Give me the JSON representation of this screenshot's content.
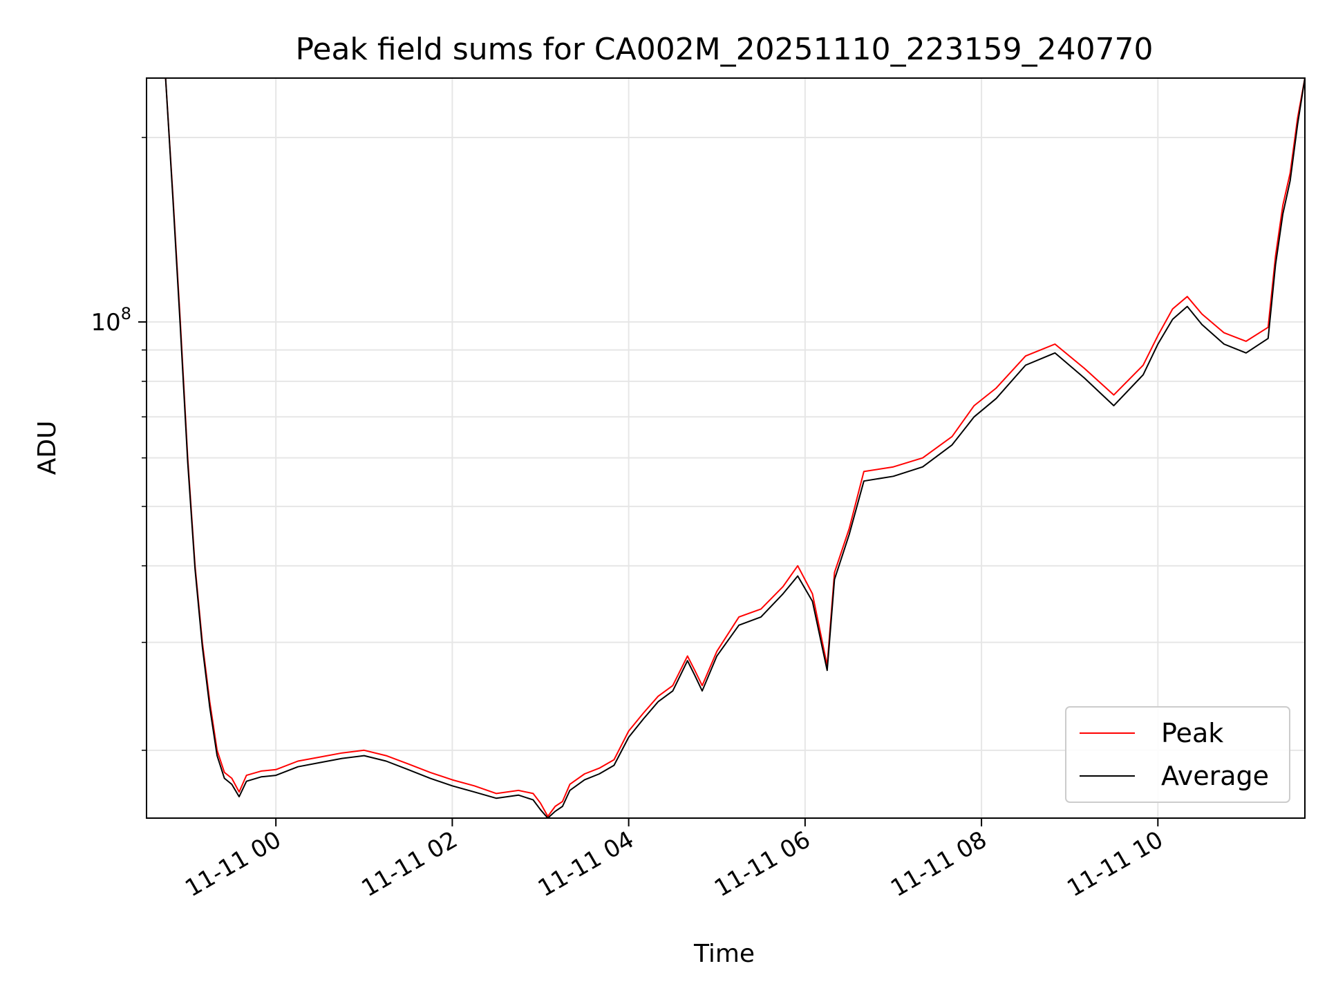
{
  "chart_data": {
    "type": "line",
    "title": "Peak field sums for CA002M_20251110_223159_240770",
    "xlabel": "Time",
    "ylabel": "ADU",
    "y_scale": "log",
    "ylim": [
      15500000,
      250000000
    ],
    "xlim": [
      "2025-11-10 22:32",
      "2025-11-11 11:40"
    ],
    "x_ticks": [
      "11-11 00",
      "11-11 02",
      "11-11 04",
      "11-11 06",
      "11-11 08",
      "11-11 10"
    ],
    "x_tick_values": [
      "2025-11-11 00:00",
      "2025-11-11 02:00",
      "2025-11-11 04:00",
      "2025-11-11 06:00",
      "2025-11-11 08:00",
      "2025-11-11 10:00"
    ],
    "y_major_tick_label": {
      "base": "10",
      "exponent": "8",
      "value": 100000000
    },
    "y_minor_ticks": [
      20000000,
      30000000,
      40000000,
      50000000,
      60000000,
      70000000,
      80000000,
      90000000,
      200000000
    ],
    "grid": true,
    "legend": {
      "position": "bottom-right",
      "entries": [
        "Peak",
        "Average"
      ]
    },
    "series": [
      {
        "name": "Peak",
        "color": "#ff0000",
        "x": [
          "2025-11-10 22:45",
          "2025-11-10 22:50",
          "2025-11-10 22:55",
          "2025-11-10 23:00",
          "2025-11-10 23:05",
          "2025-11-10 23:10",
          "2025-11-10 23:15",
          "2025-11-10 23:20",
          "2025-11-10 23:25",
          "2025-11-10 23:30",
          "2025-11-10 23:35",
          "2025-11-10 23:40",
          "2025-11-10 23:50",
          "2025-11-11 00:00",
          "2025-11-11 00:15",
          "2025-11-11 00:30",
          "2025-11-11 00:45",
          "2025-11-11 01:00",
          "2025-11-11 01:15",
          "2025-11-11 01:30",
          "2025-11-11 01:45",
          "2025-11-11 02:00",
          "2025-11-11 02:15",
          "2025-11-11 02:30",
          "2025-11-11 02:45",
          "2025-11-11 02:55",
          "2025-11-11 03:00",
          "2025-11-11 03:05",
          "2025-11-11 03:10",
          "2025-11-11 03:15",
          "2025-11-11 03:20",
          "2025-11-11 03:30",
          "2025-11-11 03:40",
          "2025-11-11 03:50",
          "2025-11-11 04:00",
          "2025-11-11 04:10",
          "2025-11-11 04:20",
          "2025-11-11 04:30",
          "2025-11-11 04:40",
          "2025-11-11 04:45",
          "2025-11-11 04:50",
          "2025-11-11 05:00",
          "2025-11-11 05:15",
          "2025-11-11 05:30",
          "2025-11-11 05:45",
          "2025-11-11 05:55",
          "2025-11-11 06:05",
          "2025-11-11 06:15",
          "2025-11-11 06:20",
          "2025-11-11 06:30",
          "2025-11-11 06:40",
          "2025-11-11 07:00",
          "2025-11-11 07:20",
          "2025-11-11 07:40",
          "2025-11-11 07:55",
          "2025-11-11 08:10",
          "2025-11-11 08:30",
          "2025-11-11 08:50",
          "2025-11-11 09:10",
          "2025-11-11 09:30",
          "2025-11-11 09:50",
          "2025-11-11 10:00",
          "2025-11-11 10:10",
          "2025-11-11 10:20",
          "2025-11-11 10:30",
          "2025-11-11 10:45",
          "2025-11-11 11:00",
          "2025-11-11 11:15",
          "2025-11-11 11:20",
          "2025-11-11 11:25",
          "2025-11-11 11:30",
          "2025-11-11 11:35",
          "2025-11-11 11:40"
        ],
        "values": [
          250000000,
          160000000,
          100000000,
          60000000,
          40000000,
          30000000,
          24000000,
          20000000,
          18400000,
          18000000,
          17100000,
          18200000,
          18500000,
          18600000,
          19200000,
          19500000,
          19800000,
          20000000,
          19600000,
          19000000,
          18400000,
          17900000,
          17500000,
          17000000,
          17200000,
          17000000,
          16400000,
          15600000,
          16200000,
          16500000,
          17600000,
          18300000,
          18700000,
          19300000,
          21500000,
          23000000,
          24500000,
          25500000,
          28500000,
          27000000,
          25500000,
          29000000,
          33000000,
          34000000,
          37000000,
          40000000,
          36000000,
          27500000,
          39000000,
          46000000,
          57000000,
          58000000,
          60000000,
          65000000,
          73000000,
          78000000,
          88000000,
          92000000,
          84000000,
          76000000,
          85000000,
          95000000,
          105000000,
          110000000,
          103000000,
          96000000,
          93000000,
          98000000,
          128000000,
          155000000,
          175000000,
          215000000,
          250000000
        ]
      },
      {
        "name": "Average",
        "color": "#000000",
        "x": [
          "2025-11-10 22:45",
          "2025-11-10 22:50",
          "2025-11-10 22:55",
          "2025-11-10 23:00",
          "2025-11-10 23:05",
          "2025-11-10 23:10",
          "2025-11-10 23:15",
          "2025-11-10 23:20",
          "2025-11-10 23:25",
          "2025-11-10 23:30",
          "2025-11-10 23:35",
          "2025-11-10 23:40",
          "2025-11-10 23:50",
          "2025-11-11 00:00",
          "2025-11-11 00:15",
          "2025-11-11 00:30",
          "2025-11-11 00:45",
          "2025-11-11 01:00",
          "2025-11-11 01:15",
          "2025-11-11 01:30",
          "2025-11-11 01:45",
          "2025-11-11 02:00",
          "2025-11-11 02:15",
          "2025-11-11 02:30",
          "2025-11-11 02:45",
          "2025-11-11 02:55",
          "2025-11-11 03:00",
          "2025-11-11 03:05",
          "2025-11-11 03:10",
          "2025-11-11 03:15",
          "2025-11-11 03:20",
          "2025-11-11 03:30",
          "2025-11-11 03:40",
          "2025-11-11 03:50",
          "2025-11-11 04:00",
          "2025-11-11 04:10",
          "2025-11-11 04:20",
          "2025-11-11 04:30",
          "2025-11-11 04:40",
          "2025-11-11 04:45",
          "2025-11-11 04:50",
          "2025-11-11 05:00",
          "2025-11-11 05:15",
          "2025-11-11 05:30",
          "2025-11-11 05:45",
          "2025-11-11 05:55",
          "2025-11-11 06:05",
          "2025-11-11 06:15",
          "2025-11-11 06:20",
          "2025-11-11 06:30",
          "2025-11-11 06:40",
          "2025-11-11 07:00",
          "2025-11-11 07:20",
          "2025-11-11 07:40",
          "2025-11-11 07:55",
          "2025-11-11 08:10",
          "2025-11-11 08:30",
          "2025-11-11 08:50",
          "2025-11-11 09:10",
          "2025-11-11 09:30",
          "2025-11-11 09:50",
          "2025-11-11 10:00",
          "2025-11-11 10:10",
          "2025-11-11 10:20",
          "2025-11-11 10:30",
          "2025-11-11 10:45",
          "2025-11-11 11:00",
          "2025-11-11 11:15",
          "2025-11-11 11:20",
          "2025-11-11 11:25",
          "2025-11-11 11:30",
          "2025-11-11 11:35",
          "2025-11-11 11:40"
        ],
        "values": [
          250000000,
          158000000,
          98000000,
          59000000,
          39500000,
          29500000,
          23500000,
          19600000,
          18000000,
          17600000,
          16800000,
          17800000,
          18100000,
          18200000,
          18800000,
          19100000,
          19400000,
          19600000,
          19200000,
          18600000,
          18000000,
          17500000,
          17100000,
          16700000,
          16900000,
          16600000,
          16000000,
          15500000,
          15900000,
          16200000,
          17200000,
          17900000,
          18300000,
          18900000,
          21000000,
          22500000,
          24000000,
          25000000,
          28000000,
          26500000,
          25000000,
          28500000,
          32000000,
          33000000,
          36000000,
          38500000,
          35000000,
          27000000,
          38000000,
          45000000,
          55000000,
          56000000,
          58000000,
          63000000,
          70000000,
          75000000,
          85000000,
          89000000,
          81000000,
          73000000,
          82000000,
          92000000,
          101000000,
          106000000,
          99000000,
          92000000,
          89000000,
          94000000,
          124000000,
          150000000,
          170000000,
          210000000,
          250000000
        ]
      }
    ]
  }
}
